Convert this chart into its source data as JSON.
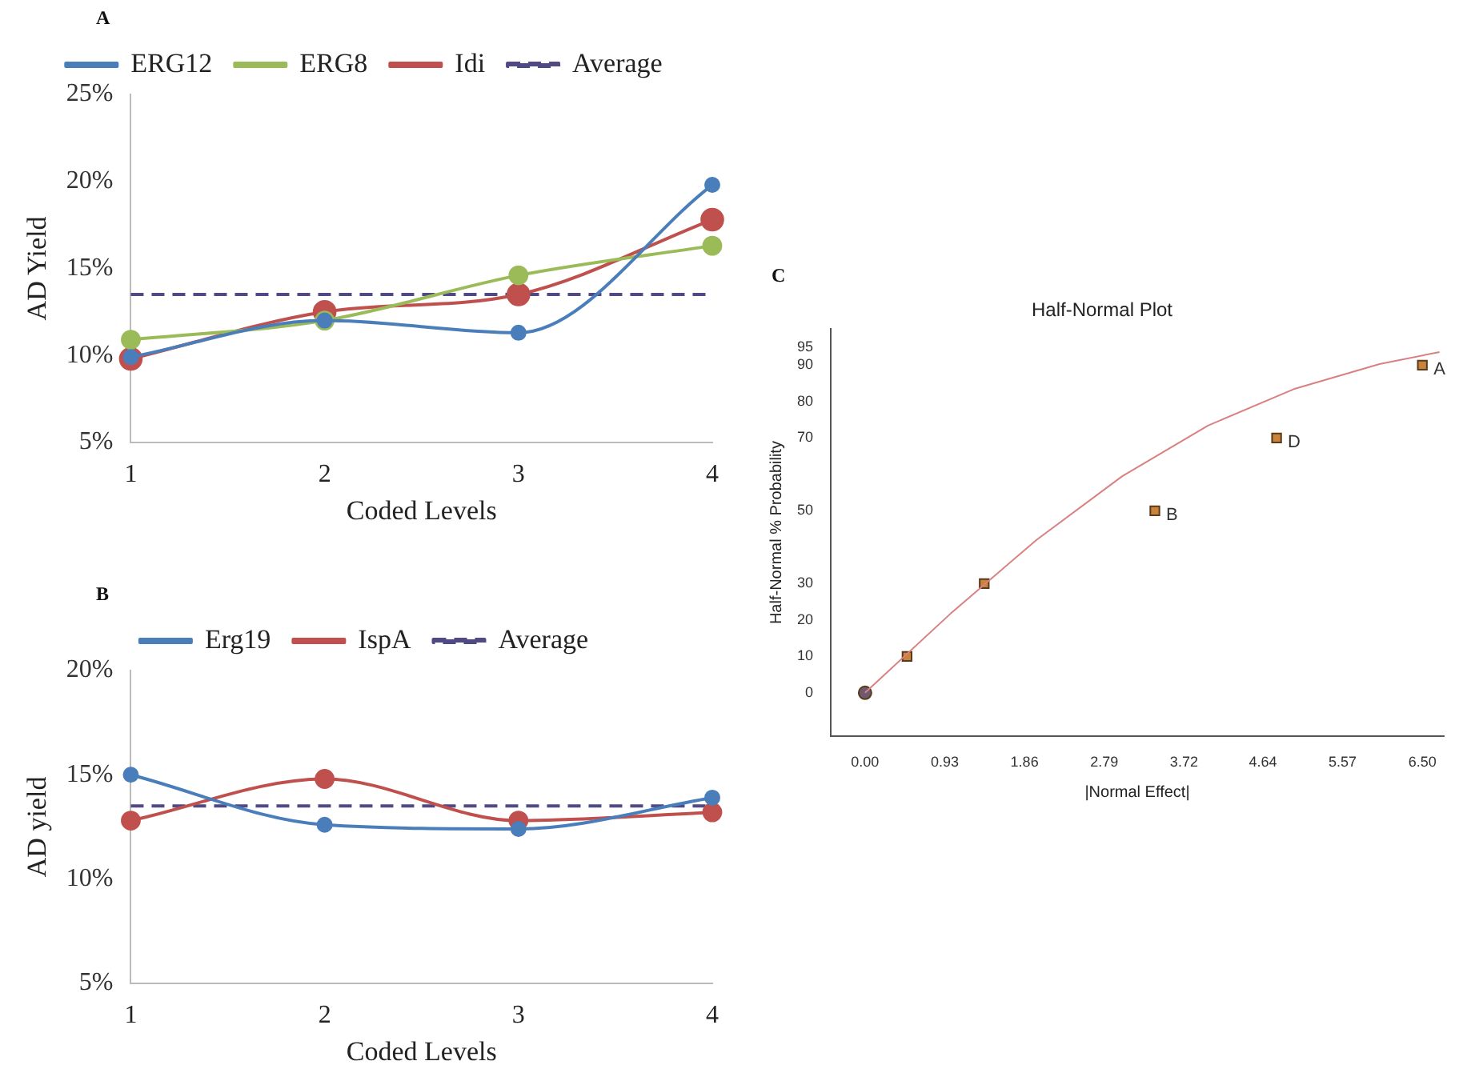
{
  "chart_data": [
    {
      "type": "line",
      "annotations": [
        "A"
      ],
      "categories": [
        "1",
        "2",
        "3",
        "4"
      ],
      "xlabel": "Coded Levels",
      "ylabel": "AD Yield",
      "series": [
        {
          "name": "ERG12",
          "color": "#4a7ebb",
          "values": [
            9.9,
            12.0,
            11.3,
            19.8
          ]
        },
        {
          "name": "ERG8",
          "color": "#9bbb59",
          "values": [
            10.9,
            12.0,
            14.6,
            16.3
          ]
        },
        {
          "name": "Idi",
          "color": "#c0504d",
          "values": [
            9.8,
            12.5,
            13.5,
            17.8
          ]
        },
        {
          "name": "Average",
          "color": "#4f4a86",
          "values": [
            13.5,
            13.5,
            13.5,
            13.5
          ],
          "marker": "none",
          "line_style": "dashed"
        }
      ],
      "ylim": [
        5,
        25
      ],
      "yticks": [
        {
          "value": 5,
          "label": "5%"
        },
        {
          "value": 10,
          "label": "10%"
        },
        {
          "value": 15,
          "label": "15%"
        },
        {
          "value": 20,
          "label": "20%"
        },
        {
          "value": 25,
          "label": "25%"
        }
      ],
      "marker": "circle",
      "grid": false,
      "legend": "top"
    },
    {
      "type": "line",
      "annotations": [
        "B"
      ],
      "categories": [
        "1",
        "2",
        "3",
        "4"
      ],
      "xlabel": "Coded Levels",
      "ylabel": "AD yield",
      "series": [
        {
          "name": "Erg19",
          "color": "#4a7ebb",
          "values": [
            15.0,
            12.6,
            12.4,
            13.9
          ]
        },
        {
          "name": "IspA",
          "color": "#c0504d",
          "values": [
            12.8,
            14.8,
            12.8,
            13.2
          ]
        },
        {
          "name": "Average",
          "color": "#4f4a86",
          "values": [
            13.5,
            13.5,
            13.5,
            13.5
          ],
          "marker": "none",
          "line_style": "dashed"
        }
      ],
      "ylim": [
        5,
        20
      ],
      "yticks": [
        {
          "value": 5,
          "label": "5%"
        },
        {
          "value": 10,
          "label": "10%"
        },
        {
          "value": 15,
          "label": "15%"
        },
        {
          "value": 20,
          "label": "20%"
        }
      ],
      "marker": "circle",
      "grid": false,
      "legend": "top"
    },
    {
      "type": "scatter",
      "title": "Half-Normal Plot",
      "xlabel": "|Normal Effect|",
      "ylabel": "Half-Normal % Probability",
      "annotations": [
        "C",
        {
          "text": "B",
          "x": 3.38,
          "y": 50
        },
        {
          "text": "D",
          "x": 4.8,
          "y": 70
        },
        {
          "text": "A",
          "x": 6.5,
          "y": 90
        }
      ],
      "series": [
        {
          "type": "line",
          "color": "#d98080",
          "x": [
            0,
            1,
            2,
            3,
            4,
            5,
            6,
            6.7
          ],
          "values": [
            0,
            21.8,
            42,
            59.5,
            73.4,
            83.4,
            90.3,
            93.6
          ],
          "marker": "none"
        },
        {
          "type": "scatter",
          "color": "#6e5a6e",
          "x": [
            0
          ],
          "values": [
            0
          ],
          "marker": "circle"
        },
        {
          "type": "scatter",
          "color": "#c8843a",
          "x": [
            0.49,
            1.39,
            3.38,
            4.8,
            6.5
          ],
          "values": [
            10,
            30,
            50,
            70,
            90
          ],
          "marker": "square"
        }
      ],
      "xlim": [
        -0.4,
        6.75
      ],
      "xticks": [
        {
          "value": 0,
          "label": "0.00"
        },
        0.93,
        1.86,
        2.79,
        3.72,
        4.64,
        5.57,
        {
          "value": 6.5,
          "label": "6.50"
        }
      ],
      "ylim": [
        -12,
        100
      ],
      "yticks": [
        0,
        10,
        20,
        30,
        50,
        70,
        80,
        90,
        95
      ],
      "grid": false,
      "legend": false
    }
  ]
}
